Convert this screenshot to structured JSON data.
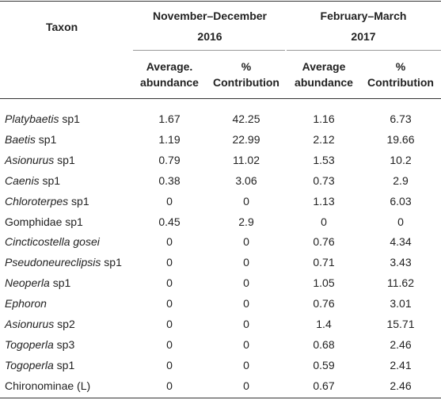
{
  "header": {
    "taxon": "Taxon",
    "period1_line1": "November–December",
    "period1_line2": "2016",
    "period2_line1": "February–March",
    "period2_line2": "2017",
    "p1_avg_line1": "Average.",
    "p1_avg_line2": "abundance",
    "p1_pct_line1": "%",
    "p1_pct_line2": "Contribution",
    "p2_avg_line1": "Average",
    "p2_avg_line2": "abundance",
    "p2_pct_line1": "%",
    "p2_pct_line2": "Contribution"
  },
  "rows": [
    {
      "genus": "Platybaetis",
      "suffix": " sp1",
      "italic_all": false,
      "v1": "1.67",
      "v2": "42.25",
      "v3": "1.16",
      "v4": "6.73"
    },
    {
      "genus": "Baetis",
      "suffix": " sp1",
      "italic_all": false,
      "v1": "1.19",
      "v2": "22.99",
      "v3": "2.12",
      "v4": "19.66"
    },
    {
      "genus": "Asionurus",
      "suffix": " sp1",
      "italic_all": false,
      "v1": "0.79",
      "v2": "11.02",
      "v3": "1.53",
      "v4": "10.2"
    },
    {
      "genus": "Caenis",
      "suffix": " sp1",
      "italic_all": false,
      "v1": "0.38",
      "v2": "3.06",
      "v3": "0.73",
      "v4": "2.9"
    },
    {
      "genus": "Chloroterpes",
      "suffix": " sp1",
      "italic_all": false,
      "v1": "0",
      "v2": "0",
      "v3": "1.13",
      "v4": "6.03"
    },
    {
      "genus": "",
      "suffix": "Gomphidae sp1",
      "italic_all": false,
      "v1": "0.45",
      "v2": "2.9",
      "v3": "0",
      "v4": "0"
    },
    {
      "genus": "Cincticostella gosei",
      "suffix": "",
      "italic_all": true,
      "v1": "0",
      "v2": "0",
      "v3": "0.76",
      "v4": "4.34"
    },
    {
      "genus": "Pseudoneureclipsis",
      "suffix": " sp1",
      "italic_all": false,
      "v1": "0",
      "v2": "0",
      "v3": "0.71",
      "v4": "3.43"
    },
    {
      "genus": "Neoperla",
      "suffix": " sp1",
      "italic_all": false,
      "v1": "0",
      "v2": "0",
      "v3": "1.05",
      "v4": "11.62"
    },
    {
      "genus": "Ephoron",
      "suffix": "",
      "italic_all": true,
      "v1": "0",
      "v2": "0",
      "v3": "0.76",
      "v4": "3.01"
    },
    {
      "genus": "Asionurus",
      "suffix": " sp2",
      "italic_all": false,
      "v1": "0",
      "v2": "0",
      "v3": "1.4",
      "v4": "15.71"
    },
    {
      "genus": "Togoperla",
      "suffix": " sp3",
      "italic_all": false,
      "v1": "0",
      "v2": "0",
      "v3": "0.68",
      "v4": "2.46"
    },
    {
      "genus": "Togoperla",
      "suffix": " sp1",
      "italic_all": false,
      "v1": "0",
      "v2": "0",
      "v3": "0.59",
      "v4": "2.41"
    },
    {
      "genus": "",
      "suffix": "Chironominae (L)",
      "italic_all": false,
      "v1": "0",
      "v2": "0",
      "v3": "0.67",
      "v4": "2.46"
    }
  ]
}
